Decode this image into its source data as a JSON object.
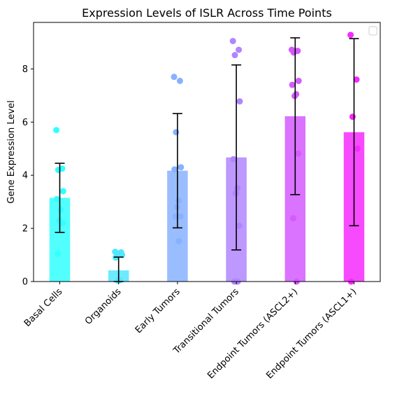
{
  "chart_data": {
    "type": "bar",
    "title": "Expression Levels of ISLR Across Time Points",
    "xlabel": "",
    "ylabel": "Gene Expression Level",
    "ylim": [
      0,
      9.75
    ],
    "yticks": [
      "0",
      "2",
      "4",
      "6",
      "8"
    ],
    "grid": false,
    "legend": "top-right",
    "legend_entries": [],
    "categories": [
      "Basal Cells",
      "Organoids",
      "Early Tumors",
      "Transitional Tumors",
      "Endpoint Tumors (ASCL2+)",
      "Endpoint Tumors (ASCL1+)"
    ],
    "colors": [
      "#33ffff",
      "#52e6ff",
      "#88b1ff",
      "#b086ff",
      "#d45aff",
      "#f62aff"
    ],
    "values": [
      3.15,
      0.42,
      4.17,
      4.67,
      6.22,
      5.62
    ],
    "errors": [
      1.3,
      0.5,
      2.15,
      3.48,
      2.95,
      3.52
    ],
    "points": [
      [
        5.7,
        4.25,
        4.2,
        3.4,
        3.1,
        2.7,
        2.3,
        2.2,
        1.05
      ],
      [
        1.12,
        1.1,
        1.05,
        1.0,
        0.9,
        0.05,
        0.03
      ],
      [
        7.7,
        7.55,
        5.62,
        4.3,
        4.22,
        3.05,
        2.8,
        2.45,
        2.45,
        1.52
      ],
      [
        9.05,
        8.72,
        8.52,
        6.78,
        4.6,
        3.52,
        3.32,
        2.1,
        0.0,
        0.0
      ],
      [
        8.72,
        8.68,
        8.62,
        7.55,
        7.4,
        7.05,
        6.98,
        4.82,
        2.38,
        0.0
      ],
      [
        9.28,
        7.6,
        6.2,
        5.0,
        0.0
      ]
    ]
  }
}
